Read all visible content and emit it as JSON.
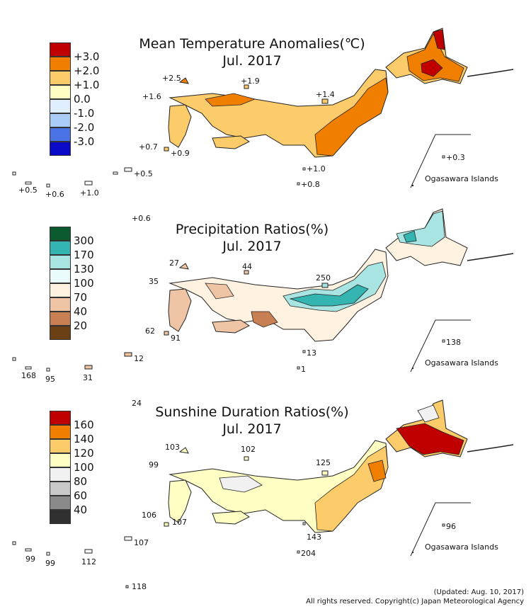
{
  "colors": {
    "temp": [
      "#c00000",
      "#f07f00",
      "#fccb6a",
      "#ffffc4",
      "#dfefff",
      "#a9cdf7",
      "#4a74e6",
      "#0a0ac8"
    ],
    "prec": [
      "#0b5a30",
      "#35b5b2",
      "#a8e4e2",
      "#e9fbfb",
      "#fff2e0",
      "#efc4a4",
      "#c87f52",
      "#6b4015"
    ],
    "sun": [
      "#c00000",
      "#f07f00",
      "#fccb6a",
      "#ffffc4",
      "#f1f1f1",
      "#c8c8c8",
      "#8a8a8a",
      "#303030"
    ]
  },
  "temperature": {
    "title": "Mean Temperature Anomalies(℃)",
    "period": "Jul. 2017",
    "legend_labels": [
      "+3.0",
      "+2.0",
      "+1.0",
      "0.0",
      "-1.0",
      "-2.0",
      "-3.0"
    ],
    "values": [
      "+2.5",
      "+1.9",
      "+1.6",
      "+1.4",
      "+0.7",
      "+0.9",
      "+1.0",
      "+0.8",
      "+0.5",
      "+0.5",
      "+0.6",
      "+1.0",
      "+0.3",
      "+0.6"
    ],
    "ogasawara": "Ogasawara Islands"
  },
  "precipitation": {
    "title": "Precipitation Ratios(%)",
    "period": "Jul. 2017",
    "legend_labels": [
      "300",
      "170",
      "130",
      "100",
      "70",
      "40",
      "20"
    ],
    "values": [
      "27",
      "44",
      "35",
      "250",
      "62",
      "91",
      "13",
      "1",
      "168",
      "95",
      "31",
      "12",
      "138",
      "24"
    ],
    "ogasawara": "Ogasawara Islands"
  },
  "sunshine": {
    "title": "Sunshine Duration Ratios(%)",
    "period": "Jul. 2017",
    "legend_labels": [
      "160",
      "140",
      "120",
      "100",
      "80",
      "60",
      "40"
    ],
    "values": [
      "103",
      "102",
      "99",
      "125",
      "106",
      "107",
      "143",
      "204",
      "99",
      "99",
      "112",
      "107",
      "96",
      "118"
    ],
    "ogasawara": "Ogasawara Islands"
  },
  "footer": {
    "updated": "(Updated: Aug. 10, 2017)",
    "copyright": "All rights reserved. Copyright(c) Japan Meteorological Agency"
  }
}
